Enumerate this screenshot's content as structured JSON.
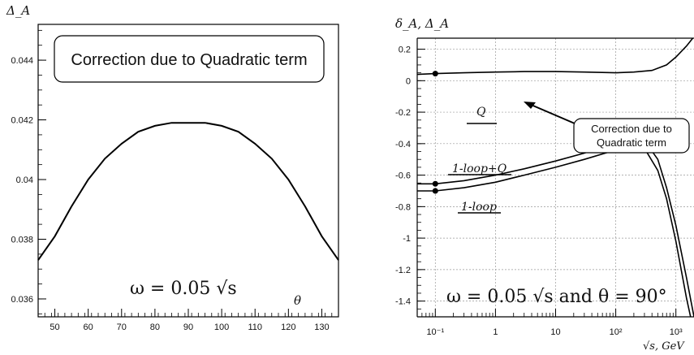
{
  "chart_data": [
    {
      "type": "line",
      "ylabel": "Δ_A",
      "xlabel": "θ",
      "xlim": [
        45,
        135
      ],
      "ylim": [
        0.0354,
        0.0452
      ],
      "x_ticks": [
        50,
        60,
        70,
        80,
        90,
        100,
        110,
        120,
        130
      ],
      "y_ticks": [
        0.036,
        0.038,
        0.04,
        0.042,
        0.044
      ],
      "y_tick_labels": [
        "0.036",
        "0.038",
        "0.04",
        "0.042",
        "0.044"
      ],
      "annotation_box": "Correction due to Quadratic term",
      "formula": "ω = 0.05 √s",
      "grid": false,
      "series": [
        {
          "x": [
            45,
            50,
            55,
            60,
            65,
            70,
            75,
            80,
            85,
            90,
            95,
            100,
            105,
            110,
            115,
            120,
            125,
            130,
            135
          ],
          "y": [
            0.0373,
            0.0381,
            0.0391,
            0.04,
            0.0407,
            0.0412,
            0.0416,
            0.0418,
            0.0419,
            0.0419,
            0.0419,
            0.0418,
            0.0416,
            0.0412,
            0.0407,
            0.04,
            0.0391,
            0.0381,
            0.0373
          ]
        }
      ]
    },
    {
      "type": "line",
      "ylabel": "δ_A, Δ_A",
      "xlabel": "√s, GeV",
      "xscale": "log",
      "xlim": [
        0.05,
        2000
      ],
      "ylim": [
        -1.5,
        0.27
      ],
      "x_ticks": [
        0.1,
        1,
        10,
        100,
        1000
      ],
      "x_tick_labels": [
        "10⁻¹",
        "1",
        "10",
        "10²",
        "10³"
      ],
      "y_ticks": [
        0.2,
        0,
        -0.2,
        -0.4,
        -0.6,
        -0.8,
        -1,
        -1.2,
        -1.4
      ],
      "y_tick_labels": [
        "0.2",
        "0",
        "-0.2",
        "-0.4",
        "-0.6",
        "-0.8",
        "-1",
        "-1.2",
        "-1.4"
      ],
      "grid": true,
      "annotation_box": [
        "Correction due to",
        "Quadratic term"
      ],
      "formula": "ω = 0.05 √s and θ = 90°",
      "series": [
        {
          "name": "Q",
          "x": [
            0.05,
            0.1,
            0.3,
            1,
            3,
            10,
            30,
            100,
            200,
            400,
            700,
            1000,
            1500,
            2000
          ],
          "y": [
            0.04,
            0.045,
            0.05,
            0.055,
            0.058,
            0.058,
            0.055,
            0.05,
            0.055,
            0.065,
            0.1,
            0.15,
            0.22,
            0.28
          ]
        },
        {
          "name": "1-loop+Q",
          "x": [
            0.05,
            0.1,
            0.3,
            1,
            3,
            10,
            30,
            100,
            200,
            300,
            500,
            700,
            1000,
            1500,
            2000
          ],
          "y": [
            -0.655,
            -0.655,
            -0.635,
            -0.6,
            -0.56,
            -0.51,
            -0.46,
            -0.39,
            -0.36,
            -0.38,
            -0.5,
            -0.68,
            -0.92,
            -1.25,
            -1.5
          ]
        },
        {
          "name": "1-loop",
          "x": [
            0.05,
            0.1,
            0.3,
            1,
            3,
            10,
            30,
            100,
            200,
            300,
            500,
            700,
            1000,
            1500,
            2000
          ],
          "y": [
            -0.7,
            -0.7,
            -0.68,
            -0.645,
            -0.6,
            -0.55,
            -0.5,
            -0.44,
            -0.41,
            -0.43,
            -0.57,
            -0.75,
            -1.02,
            -1.38,
            -1.6
          ]
        }
      ],
      "markers": [
        {
          "x": 0.1,
          "y": 0.045
        },
        {
          "x": 0.1,
          "y": -0.655
        },
        {
          "x": 0.1,
          "y": -0.7
        }
      ]
    }
  ]
}
